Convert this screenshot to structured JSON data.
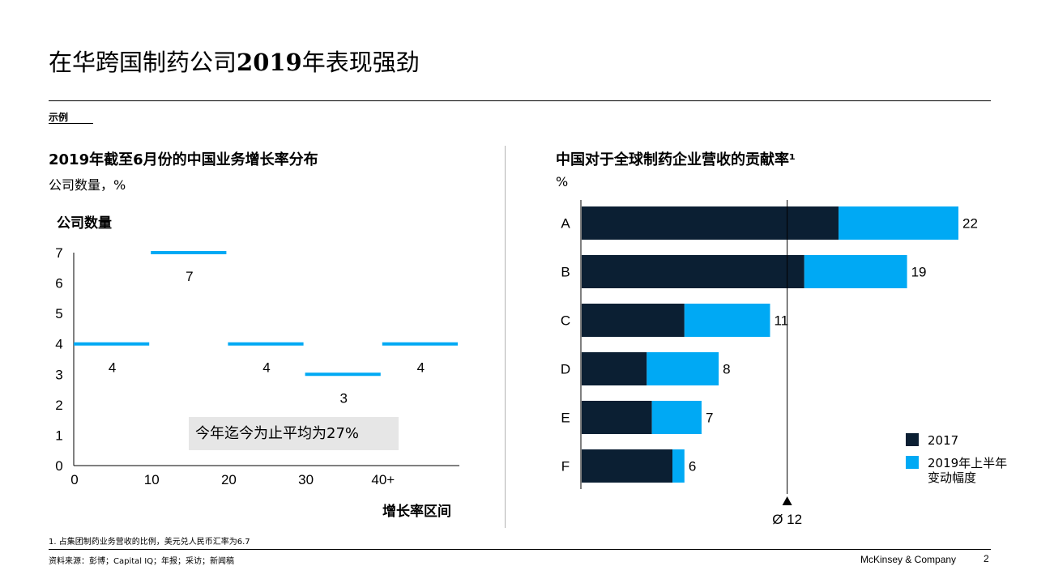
{
  "page": {
    "title_prefix": "在华跨国制药公司",
    "title_year": "2019",
    "title_suffix": "年表现强劲",
    "tag": "示例",
    "footnote": "1.     占集团制药业务营收的比例，美元兑人民币汇率为6.7",
    "source": "资料来源：彭博；Capital IQ；年报；采访；新闻稿",
    "company": "McKinsey & Company",
    "page_number": "2"
  },
  "left": {
    "title": "2019年截至6月份的中国业务增长率分布",
    "subtitle": "公司数量，%",
    "y_axis_title": "公司数量",
    "x_axis_title": "增长率区间",
    "note": "今年迄今为止平均为27%"
  },
  "right": {
    "title": "中国对于全球制药企业营收的贡献率¹",
    "unit": "%",
    "avg_label": "Ø 12",
    "legend": [
      "2017",
      "2019年上半年\n变动幅度"
    ]
  },
  "colors": {
    "dark": "#0b1f33",
    "blue": "#00a9f4",
    "grid": "#000000"
  },
  "chart_data": [
    {
      "type": "bar",
      "categories": [
        "0-10",
        "10-20",
        "20-30",
        "30-40",
        "40+"
      ],
      "values": [
        4,
        7,
        4,
        3,
        4
      ],
      "x_ticks": [
        "0",
        "10",
        "20",
        "30",
        "40+"
      ],
      "y_ticks": [
        "0",
        "1",
        "2",
        "3",
        "4",
        "5",
        "6",
        "7"
      ],
      "ylim": [
        0,
        7
      ],
      "xlabel": "增长率区间",
      "ylabel": "公司数量"
    },
    {
      "type": "bar",
      "orientation": "horizontal",
      "stacked": true,
      "categories": [
        "A",
        "B",
        "C",
        "D",
        "E",
        "F"
      ],
      "series": [
        {
          "name": "2017",
          "values": [
            15,
            13,
            6,
            3.8,
            4.1,
            5.3
          ]
        },
        {
          "name": "2019年上半年变动幅度",
          "values": [
            7,
            6,
            5,
            4.2,
            2.9,
            0.7
          ]
        }
      ],
      "totals": [
        22,
        19,
        11,
        8,
        7,
        6
      ],
      "average": 12,
      "xlim": [
        0,
        22
      ]
    }
  ]
}
